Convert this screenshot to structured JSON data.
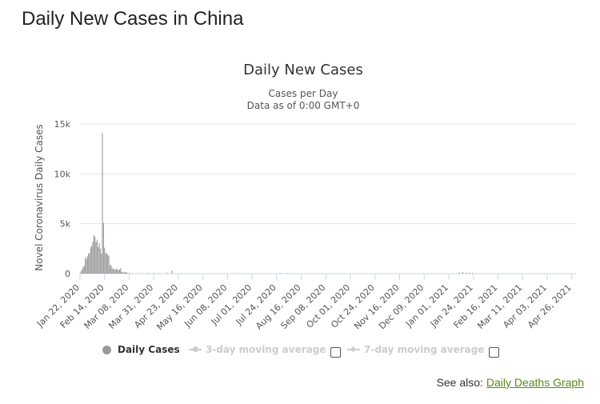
{
  "page": {
    "heading": "Daily New Cases in China"
  },
  "see_also": {
    "prefix": "See also:",
    "link_label": "Daily Deaths Graph"
  },
  "legend": {
    "items": [
      {
        "label": "Daily Cases",
        "active": true
      },
      {
        "label": "3-day moving average",
        "active": false
      },
      {
        "label": "7-day moving average",
        "active": false
      }
    ]
  },
  "colors": {
    "bar": "#999999",
    "grid": "#e6e6e6",
    "inactive": "#cccccc",
    "link": "#5a8a1a"
  },
  "chart_data": {
    "type": "bar",
    "title": "Daily New Cases",
    "subtitle_lines": [
      "Cases per Day",
      "Data as of 0:00 GMT+0"
    ],
    "ylabel": "Novel Coronavirus Daily Cases",
    "xlabel": "",
    "ylim": [
      0,
      15000
    ],
    "y_ticks": [
      0,
      5000,
      10000,
      15000
    ],
    "y_tick_labels": [
      "0",
      "5k",
      "10k",
      "15k"
    ],
    "x_start": "2020-01-22",
    "x_end": "2021-04-30",
    "x_ticks": [
      {
        "date": "2020-01-22",
        "label": "Jan 22, 2020"
      },
      {
        "date": "2020-02-14",
        "label": "Feb 14, 2020"
      },
      {
        "date": "2020-03-08",
        "label": "Mar 08, 2020"
      },
      {
        "date": "2020-03-31",
        "label": "Mar 31, 2020"
      },
      {
        "date": "2020-04-23",
        "label": "Apr 23, 2020"
      },
      {
        "date": "2020-05-16",
        "label": "May 16, 2020"
      },
      {
        "date": "2020-06-08",
        "label": "Jun 08, 2020"
      },
      {
        "date": "2020-07-01",
        "label": "Jul 01, 2020"
      },
      {
        "date": "2020-07-24",
        "label": "Jul 24, 2020"
      },
      {
        "date": "2020-08-16",
        "label": "Aug 16, 2020"
      },
      {
        "date": "2020-09-08",
        "label": "Sep 08, 2020"
      },
      {
        "date": "2020-10-01",
        "label": "Oct 01, 2020"
      },
      {
        "date": "2020-10-24",
        "label": "Oct 24, 2020"
      },
      {
        "date": "2020-11-16",
        "label": "Nov 16, 2020"
      },
      {
        "date": "2020-12-09",
        "label": "Dec 09, 2020"
      },
      {
        "date": "2021-01-01",
        "label": "Jan 01, 2021"
      },
      {
        "date": "2021-01-24",
        "label": "Jan 24, 2021"
      },
      {
        "date": "2021-02-16",
        "label": "Feb 16, 2021"
      },
      {
        "date": "2021-03-11",
        "label": "Mar 11, 2021"
      },
      {
        "date": "2021-04-03",
        "label": "Apr 03, 2021"
      },
      {
        "date": "2021-04-26",
        "label": "Apr 26, 2021"
      }
    ],
    "series": [
      {
        "name": "Daily Cases",
        "points": [
          [
            "2020-01-23",
            250
          ],
          [
            "2020-01-24",
            450
          ],
          [
            "2020-01-25",
            680
          ],
          [
            "2020-01-26",
            770
          ],
          [
            "2020-01-27",
            1650
          ],
          [
            "2020-01-28",
            1450
          ],
          [
            "2020-01-29",
            1750
          ],
          [
            "2020-01-30",
            2000
          ],
          [
            "2020-01-31",
            2050
          ],
          [
            "2020-02-01",
            2600
          ],
          [
            "2020-02-02",
            2800
          ],
          [
            "2020-02-03",
            3200
          ],
          [
            "2020-02-04",
            3850
          ],
          [
            "2020-02-05",
            3700
          ],
          [
            "2020-02-06",
            3150
          ],
          [
            "2020-02-07",
            3400
          ],
          [
            "2020-02-08",
            2650
          ],
          [
            "2020-02-09",
            3050
          ],
          [
            "2020-02-10",
            2500
          ],
          [
            "2020-02-11",
            2000
          ],
          [
            "2020-02-12",
            14100
          ],
          [
            "2020-02-13",
            5100
          ],
          [
            "2020-02-14",
            2600
          ],
          [
            "2020-02-15",
            2050
          ],
          [
            "2020-02-16",
            2050
          ],
          [
            "2020-02-17",
            1900
          ],
          [
            "2020-02-18",
            1750
          ],
          [
            "2020-02-19",
            800
          ],
          [
            "2020-02-20",
            900
          ],
          [
            "2020-02-21",
            600
          ],
          [
            "2020-02-22",
            450
          ],
          [
            "2020-02-23",
            450
          ],
          [
            "2020-02-24",
            420
          ],
          [
            "2020-02-25",
            500
          ],
          [
            "2020-02-26",
            430
          ],
          [
            "2020-02-27",
            330
          ],
          [
            "2020-02-28",
            430
          ],
          [
            "2020-02-29",
            570
          ],
          [
            "2020-03-01",
            210
          ],
          [
            "2020-03-02",
            125
          ],
          [
            "2020-03-03",
            120
          ],
          [
            "2020-03-04",
            140
          ],
          [
            "2020-03-05",
            140
          ],
          [
            "2020-03-06",
            100
          ],
          [
            "2020-03-07",
            45
          ],
          [
            "2020-03-08",
            40
          ],
          [
            "2020-03-09",
            20
          ],
          [
            "2020-03-10",
            25
          ],
          [
            "2020-03-15",
            20
          ],
          [
            "2020-03-20",
            40
          ],
          [
            "2020-03-25",
            70
          ],
          [
            "2020-03-30",
            40
          ],
          [
            "2020-04-05",
            40
          ],
          [
            "2020-04-12",
            100
          ],
          [
            "2020-04-17",
            325
          ],
          [
            "2020-04-25",
            15
          ],
          [
            "2020-06-15",
            40
          ],
          [
            "2020-07-28",
            60
          ],
          [
            "2020-08-02",
            50
          ],
          [
            "2021-01-11",
            110
          ],
          [
            "2021-01-14",
            140
          ],
          [
            "2021-01-17",
            110
          ],
          [
            "2021-01-20",
            100
          ],
          [
            "2021-01-23",
            80
          ]
        ]
      }
    ],
    "grid": true,
    "legend_position": "bottom"
  }
}
